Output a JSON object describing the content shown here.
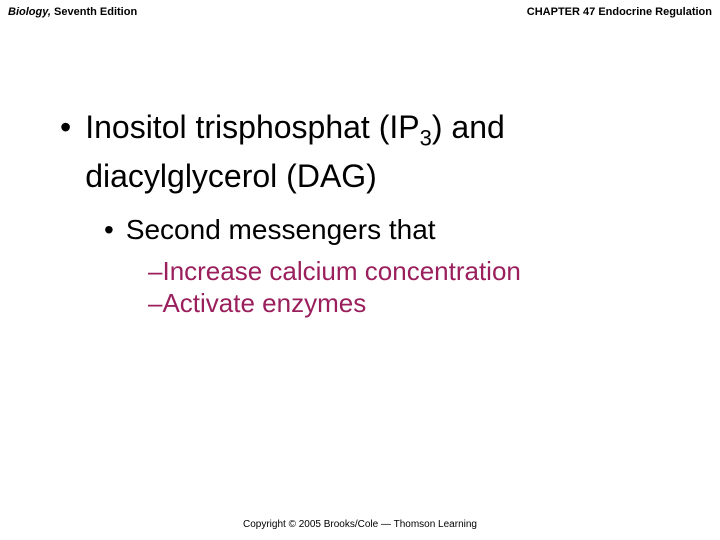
{
  "header": {
    "book_title_italic": "Biology,",
    "book_title_rest": " Seventh Edition",
    "chapter": "CHAPTER 47 Endocrine Regulation"
  },
  "content": {
    "l1_pre": "Inositol trisphosphat (IP",
    "l1_sub": "3",
    "l1_post": ") and diacylglycerol (DAG)",
    "l2": "Second messengers that",
    "l3a": "Increase calcium concentration",
    "l3b": "Activate enzymes"
  },
  "footer": {
    "copyright": "Copyright © 2005 Brooks/Cole — Thomson Learning"
  },
  "colors": {
    "accent": "#9a1f5c",
    "text": "#000000",
    "background": "#ffffff"
  }
}
